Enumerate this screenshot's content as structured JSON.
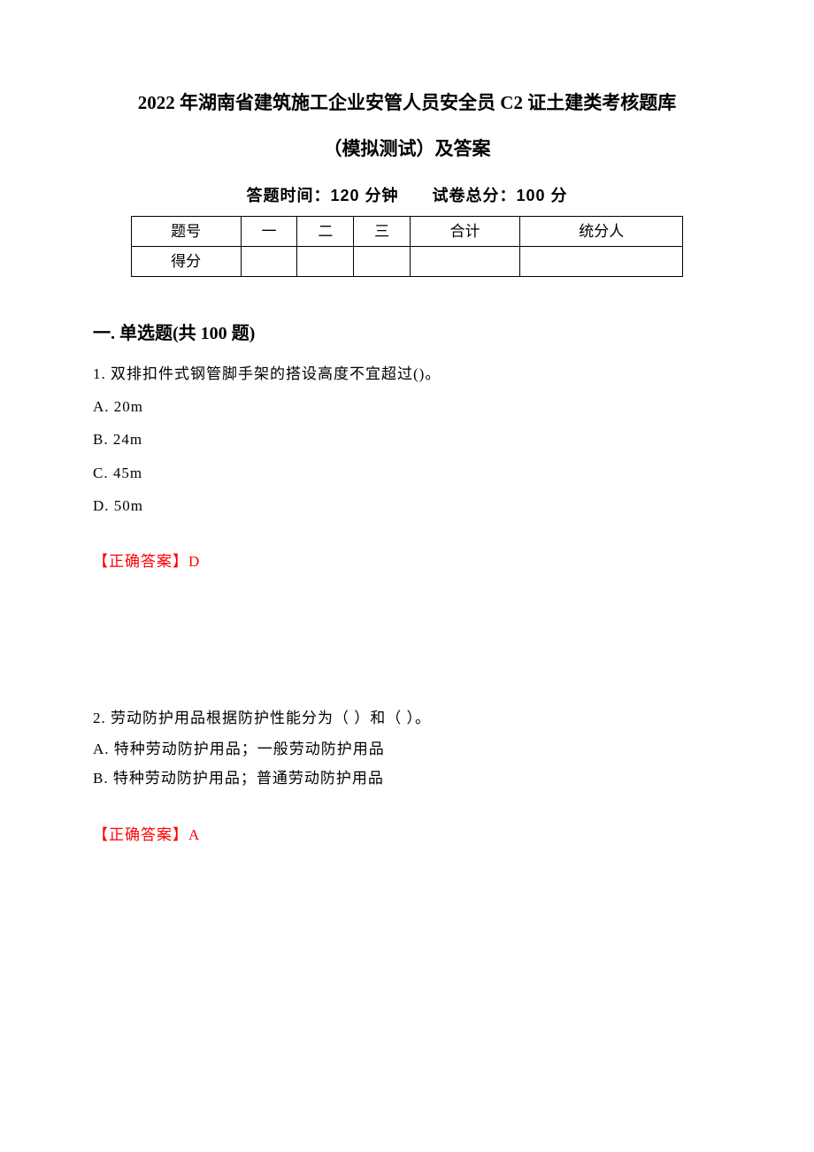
{
  "title_line1": "2022 年湖南省建筑施工企业安管人员安全员 C2 证土建类考核题库",
  "title_line2": "（模拟测试）及答案",
  "exam_info": "答题时间：120 分钟　　试卷总分：100 分",
  "score_table": {
    "headers": [
      "题号",
      "一",
      "二",
      "三",
      "合计",
      "统分人"
    ],
    "row_label": "得分",
    "font_size": 17,
    "border_color": "#000000"
  },
  "section_title": "一. 单选题(共 100 题)",
  "question1": {
    "text": "1. 双排扣件式钢管脚手架的搭设高度不宜超过()。",
    "options": {
      "A": "A. 20m",
      "B": "B. 24m",
      "C": "C. 45m",
      "D": "D. 50m"
    },
    "answer_label": "【正确答案】",
    "answer_value": "D"
  },
  "question2": {
    "text": "2. 劳动防护用品根据防护性能分为（ ）和（ ）。",
    "options": {
      "A": "A. 特种劳动防护用品；一般劳动防护用品",
      "B": "B. 特种劳动防护用品；普通劳动防护用品"
    },
    "answer_label": "【正确答案】",
    "answer_value": "A"
  },
  "colors": {
    "text": "#000000",
    "answer": "#ff0000",
    "background": "#ffffff"
  },
  "typography": {
    "title_fontsize": 21,
    "info_fontsize": 18,
    "section_fontsize": 20,
    "body_fontsize": 17
  }
}
